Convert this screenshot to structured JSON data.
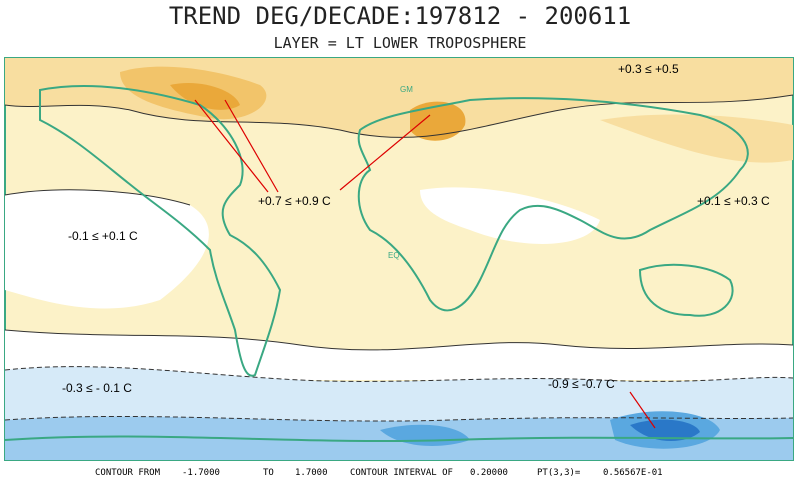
{
  "header": {
    "title": "TREND DEG/DECADE:197812 - 200611",
    "subtitle": "LAYER =  LT LOWER TROPOSPHERE"
  },
  "map": {
    "labels": [
      "GM",
      "EQ"
    ],
    "annotations": [
      "+0.3 ≤ +0.5",
      "+0.7 ≤ +0.9 C",
      "+0.1 ≤ +0.3 C",
      "-0.1 ≤ +0.1 C",
      "-0.3 ≤ - 0.1 C",
      "-0.9 ≤ -0.7 C"
    ]
  },
  "footer": {
    "items": [
      "CONTOUR FROM",
      "-1.7000",
      "TO",
      "1.7000",
      "CONTOUR INTERVAL OF",
      "0.20000",
      "PT(3,3)=",
      "0.56567E-01"
    ]
  }
}
